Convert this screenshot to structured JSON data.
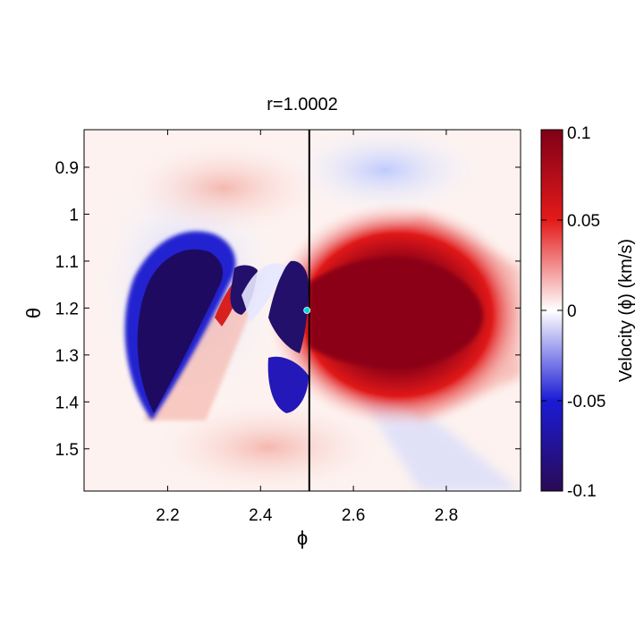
{
  "chart_data": {
    "type": "heatmap",
    "title": "r=1.0002",
    "xlabel": "ϕ",
    "ylabel": "θ",
    "xlim": [
      2.02,
      2.96
    ],
    "ylim": [
      0.82,
      1.59
    ],
    "y_reversed": true,
    "xticks": [
      2.2,
      2.4,
      2.6,
      2.8
    ],
    "xtick_labels": [
      "2.2",
      "2.4",
      "2.6",
      "2.8"
    ],
    "yticks": [
      0.9,
      1.0,
      1.1,
      1.2,
      1.3,
      1.4,
      1.5
    ],
    "ytick_labels": [
      "0.9",
      "1",
      "1.1",
      "1.2",
      "1.3",
      "1.4",
      "1.5"
    ],
    "colorbar": {
      "label": "Velocity (ϕ) (km/s)",
      "range": [
        -0.1,
        0.1
      ],
      "ticks": [
        0.1,
        0.05,
        0,
        -0.05,
        -0.1
      ],
      "tick_labels": [
        "0.1",
        "0.05",
        "0",
        "-0.05",
        "-0.1"
      ],
      "colormap": [
        "#2a0a55",
        "#1b1bd6",
        "#ffffff",
        "#e41a1a",
        "#800018"
      ]
    },
    "vertical_line_x": 2.505,
    "marker": {
      "x": 2.5,
      "y": 1.205,
      "color": "#00d8e0"
    },
    "grid": false
  }
}
